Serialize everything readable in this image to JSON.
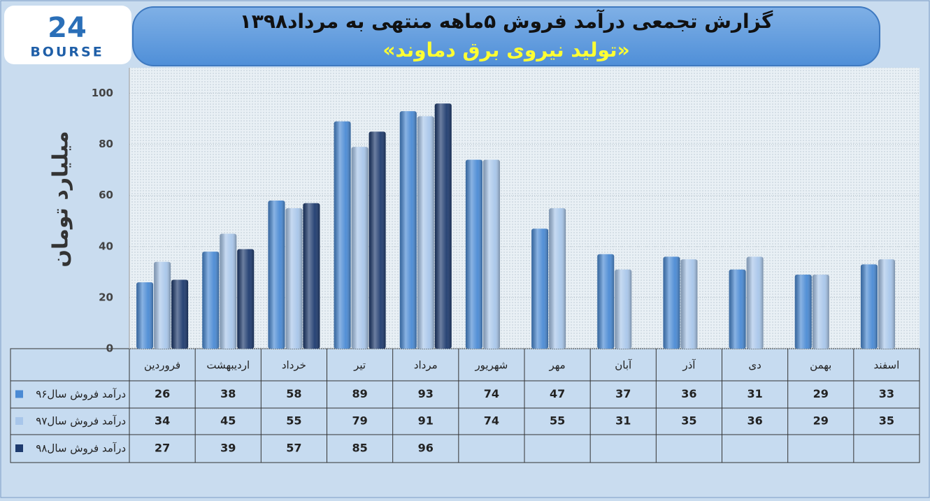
{
  "logo": {
    "number": "24",
    "text": "BOURSE"
  },
  "chart_data": {
    "type": "bar",
    "title": "گزارش تجمعی درآمد فروش ۵ماهه منتهی به مرداد۱۳۹۸",
    "subtitle": "«تولید نیروی برق دماوند»",
    "y_label": "میلیارد تومان",
    "categories": [
      "فروردین",
      "اردیبهشت",
      "خرداد",
      "تیر",
      "مرداد",
      "شهریور",
      "مهر",
      "آبان",
      "آذر",
      "دی",
      "بهمن",
      "اسفند"
    ],
    "series": [
      {
        "name": "درآمد فروش سال۹۶",
        "color": "#4a8ad4",
        "values": [
          26,
          38,
          58,
          89,
          93,
          74,
          47,
          37,
          36,
          31,
          29,
          33
        ]
      },
      {
        "name": "درآمد فروش سال۹۷",
        "color": "#a8c6ea",
        "values": [
          34,
          45,
          55,
          79,
          91,
          74,
          55,
          31,
          35,
          36,
          29,
          35
        ]
      },
      {
        "name": "درآمد فروش سال۹۸",
        "color": "#1d3a6e",
        "values": [
          27,
          39,
          57,
          85,
          96,
          null,
          null,
          null,
          null,
          null,
          null,
          null
        ]
      }
    ],
    "ylim": [
      0,
      110
    ],
    "yticks": [
      0,
      20,
      40,
      60,
      80,
      100
    ],
    "grid": true
  }
}
